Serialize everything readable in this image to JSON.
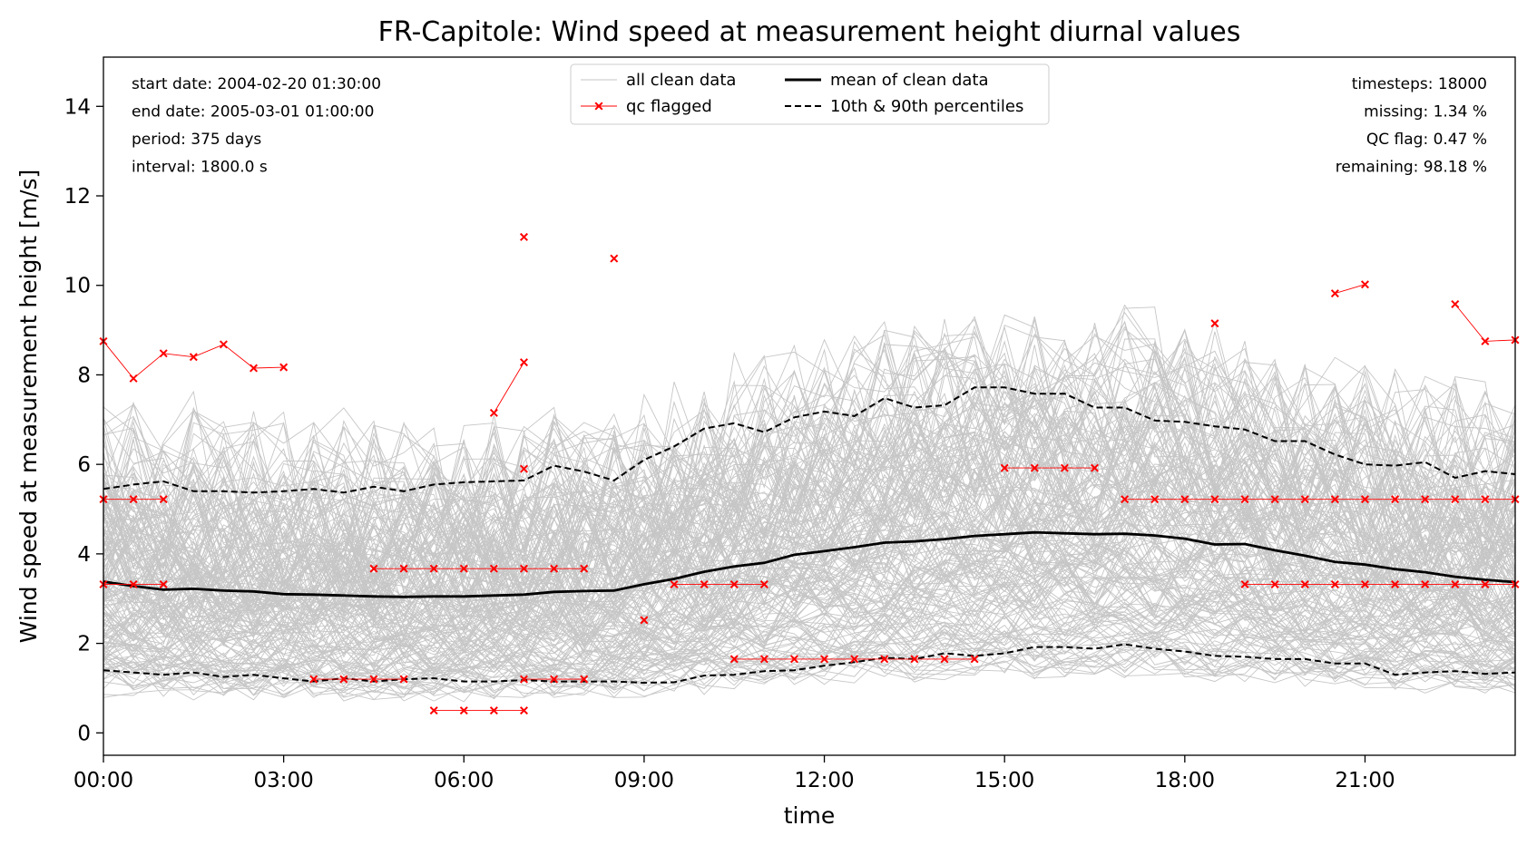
{
  "chart_data": {
    "type": "line",
    "title": "FR-Capitole: Wind speed at measurement height diurnal values",
    "xlabel": "time",
    "ylabel": "Wind speed at measurement height [m/s]",
    "xlim": [
      0,
      23.5
    ],
    "ylim": [
      -0.5,
      15.1
    ],
    "xticks": [
      {
        "value": 0,
        "label": "00:00"
      },
      {
        "value": 3,
        "label": "03:00"
      },
      {
        "value": 6,
        "label": "06:00"
      },
      {
        "value": 9,
        "label": "09:00"
      },
      {
        "value": 12,
        "label": "12:00"
      },
      {
        "value": 15,
        "label": "15:00"
      },
      {
        "value": 18,
        "label": "18:00"
      },
      {
        "value": 21,
        "label": "21:00"
      }
    ],
    "yticks": [
      {
        "value": 0,
        "label": "0"
      },
      {
        "value": 2,
        "label": "2"
      },
      {
        "value": 4,
        "label": "4"
      },
      {
        "value": 6,
        "label": "6"
      },
      {
        "value": 8,
        "label": "8"
      },
      {
        "value": 10,
        "label": "10"
      },
      {
        "value": 12,
        "label": "12"
      },
      {
        "value": 14,
        "label": "14"
      }
    ],
    "info_left": [
      "start date: 2004-02-20 01:30:00",
      "end date: 2005-03-01 01:00:00",
      "period: 375 days",
      "interval: 1800.0 s"
    ],
    "info_right": [
      "timesteps: 18000",
      "missing: 1.34 %",
      "QC flag: 0.47 %",
      "remaining: 98.18 %"
    ],
    "legend": {
      "placement": "top-center",
      "entries": [
        {
          "label": "all clean data",
          "style": "thin-gray"
        },
        {
          "label": "mean of clean data",
          "style": "solid-black"
        },
        {
          "label": "qc flagged",
          "style": "red-x"
        },
        {
          "label": "10th & 90th percentiles",
          "style": "dashed-black"
        }
      ]
    },
    "x": [
      0,
      0.5,
      1,
      1.5,
      2,
      2.5,
      3,
      3.5,
      4,
      4.5,
      5,
      5.5,
      6,
      6.5,
      7,
      7.5,
      8,
      8.5,
      9,
      9.5,
      10,
      10.5,
      11,
      11.5,
      12,
      12.5,
      13,
      13.5,
      14,
      14.5,
      15,
      15.5,
      16,
      16.5,
      17,
      17.5,
      18,
      18.5,
      19,
      19.5,
      20,
      20.5,
      21,
      21.5,
      22,
      22.5,
      23,
      23.5
    ],
    "series": [
      {
        "name": "mean of clean data",
        "style": "solid-black",
        "values": [
          3.38,
          3.28,
          3.2,
          3.22,
          3.18,
          3.16,
          3.1,
          3.09,
          3.07,
          3.05,
          3.04,
          3.05,
          3.05,
          3.07,
          3.09,
          3.15,
          3.17,
          3.18,
          3.32,
          3.44,
          3.6,
          3.72,
          3.8,
          3.98,
          4.06,
          4.15,
          4.25,
          4.28,
          4.33,
          4.4,
          4.44,
          4.48,
          4.46,
          4.44,
          4.45,
          4.41,
          4.34,
          4.21,
          4.22,
          4.08,
          3.96,
          3.82,
          3.76,
          3.66,
          3.59,
          3.49,
          3.42,
          3.37
        ]
      },
      {
        "name": "90th percentile",
        "style": "dashed-black",
        "values": [
          5.45,
          5.55,
          5.62,
          5.4,
          5.4,
          5.37,
          5.4,
          5.45,
          5.37,
          5.5,
          5.4,
          5.55,
          5.6,
          5.62,
          5.64,
          5.97,
          5.84,
          5.64,
          6.1,
          6.4,
          6.8,
          6.92,
          6.72,
          7.05,
          7.18,
          7.08,
          7.48,
          7.27,
          7.32,
          7.72,
          7.72,
          7.58,
          7.58,
          7.27,
          7.27,
          6.98,
          6.95,
          6.85,
          6.78,
          6.52,
          6.52,
          6.22,
          6.0,
          5.97,
          6.05,
          5.7,
          5.85,
          5.78
        ]
      },
      {
        "name": "10th percentile",
        "style": "dashed-black",
        "values": [
          1.4,
          1.35,
          1.3,
          1.35,
          1.25,
          1.3,
          1.22,
          1.15,
          1.22,
          1.15,
          1.2,
          1.22,
          1.15,
          1.15,
          1.18,
          1.15,
          1.15,
          1.15,
          1.12,
          1.13,
          1.28,
          1.3,
          1.38,
          1.4,
          1.5,
          1.58,
          1.68,
          1.65,
          1.78,
          1.72,
          1.78,
          1.92,
          1.92,
          1.88,
          1.98,
          1.88,
          1.82,
          1.72,
          1.7,
          1.65,
          1.65,
          1.55,
          1.55,
          1.3,
          1.35,
          1.38,
          1.32,
          1.35
        ]
      }
    ],
    "qc_flagged_groups": [
      [
        [
          0,
          8.75
        ],
        [
          0.5,
          7.92
        ],
        [
          1,
          8.48
        ],
        [
          1.5,
          8.4
        ],
        [
          2,
          8.68
        ],
        [
          2.5,
          8.15
        ],
        [
          3,
          8.17
        ]
      ],
      [
        [
          0,
          5.22
        ],
        [
          0.5,
          5.22
        ],
        [
          1,
          5.22
        ]
      ],
      [
        [
          0,
          3.32
        ],
        [
          0.5,
          3.32
        ],
        [
          1,
          3.32
        ]
      ],
      [
        [
          4.5,
          3.67
        ],
        [
          5,
          3.67
        ],
        [
          5.5,
          3.67
        ],
        [
          6,
          3.67
        ],
        [
          6.5,
          3.67
        ],
        [
          7,
          3.67
        ],
        [
          7.5,
          3.67
        ],
        [
          8,
          3.67
        ]
      ],
      [
        [
          3.5,
          1.2
        ],
        [
          4,
          1.2
        ],
        [
          4.5,
          1.2
        ],
        [
          5,
          1.2
        ]
      ],
      [
        [
          5.5,
          0.5
        ],
        [
          6,
          0.5
        ],
        [
          6.5,
          0.5
        ],
        [
          7,
          0.5
        ]
      ],
      [
        [
          7,
          1.2
        ],
        [
          7.5,
          1.2
        ],
        [
          8,
          1.2
        ]
      ],
      [
        [
          6.5,
          7.15
        ],
        [
          7,
          8.28
        ]
      ],
      [
        [
          7,
          11.08
        ]
      ],
      [
        [
          7,
          5.9
        ]
      ],
      [
        [
          8.5,
          10.6
        ]
      ],
      [
        [
          9,
          2.52
        ]
      ],
      [
        [
          9.5,
          3.32
        ],
        [
          10,
          3.32
        ],
        [
          10.5,
          3.32
        ],
        [
          11,
          3.32
        ]
      ],
      [
        [
          10.5,
          1.65
        ],
        [
          11,
          1.65
        ],
        [
          11.5,
          1.65
        ],
        [
          12,
          1.65
        ],
        [
          12.5,
          1.65
        ],
        [
          13,
          1.65
        ],
        [
          13.5,
          1.65
        ],
        [
          14,
          1.65
        ],
        [
          14.5,
          1.65
        ]
      ],
      [
        [
          15,
          5.92
        ],
        [
          15.5,
          5.92
        ],
        [
          16,
          5.92
        ],
        [
          16.5,
          5.92
        ]
      ],
      [
        [
          17,
          5.22
        ],
        [
          17.5,
          5.22
        ],
        [
          18,
          5.22
        ],
        [
          18.5,
          5.22
        ],
        [
          19,
          5.22
        ],
        [
          19.5,
          5.22
        ],
        [
          20,
          5.22
        ],
        [
          20.5,
          5.22
        ],
        [
          21,
          5.22
        ],
        [
          21.5,
          5.22
        ],
        [
          22,
          5.22
        ],
        [
          22.5,
          5.22
        ],
        [
          23,
          5.22
        ],
        [
          23.5,
          5.22
        ]
      ],
      [
        [
          18.5,
          9.15
        ]
      ],
      [
        [
          19,
          3.32
        ],
        [
          19.5,
          3.32
        ],
        [
          20,
          3.32
        ],
        [
          20.5,
          3.32
        ],
        [
          21,
          3.32
        ],
        [
          21.5,
          3.32
        ],
        [
          22,
          3.32
        ],
        [
          22.5,
          3.32
        ],
        [
          23,
          3.32
        ],
        [
          23.5,
          3.32
        ]
      ],
      [
        [
          20.5,
          9.82
        ],
        [
          21,
          10.02
        ]
      ],
      [
        [
          22.5,
          9.58
        ],
        [
          23,
          8.75
        ],
        [
          23.5,
          8.78
        ]
      ]
    ],
    "clean_data_note_count": 375,
    "colors": {
      "clean": "#c6c6c6",
      "mean": "#000000",
      "flag": "#ff0000"
    },
    "grid": false
  }
}
